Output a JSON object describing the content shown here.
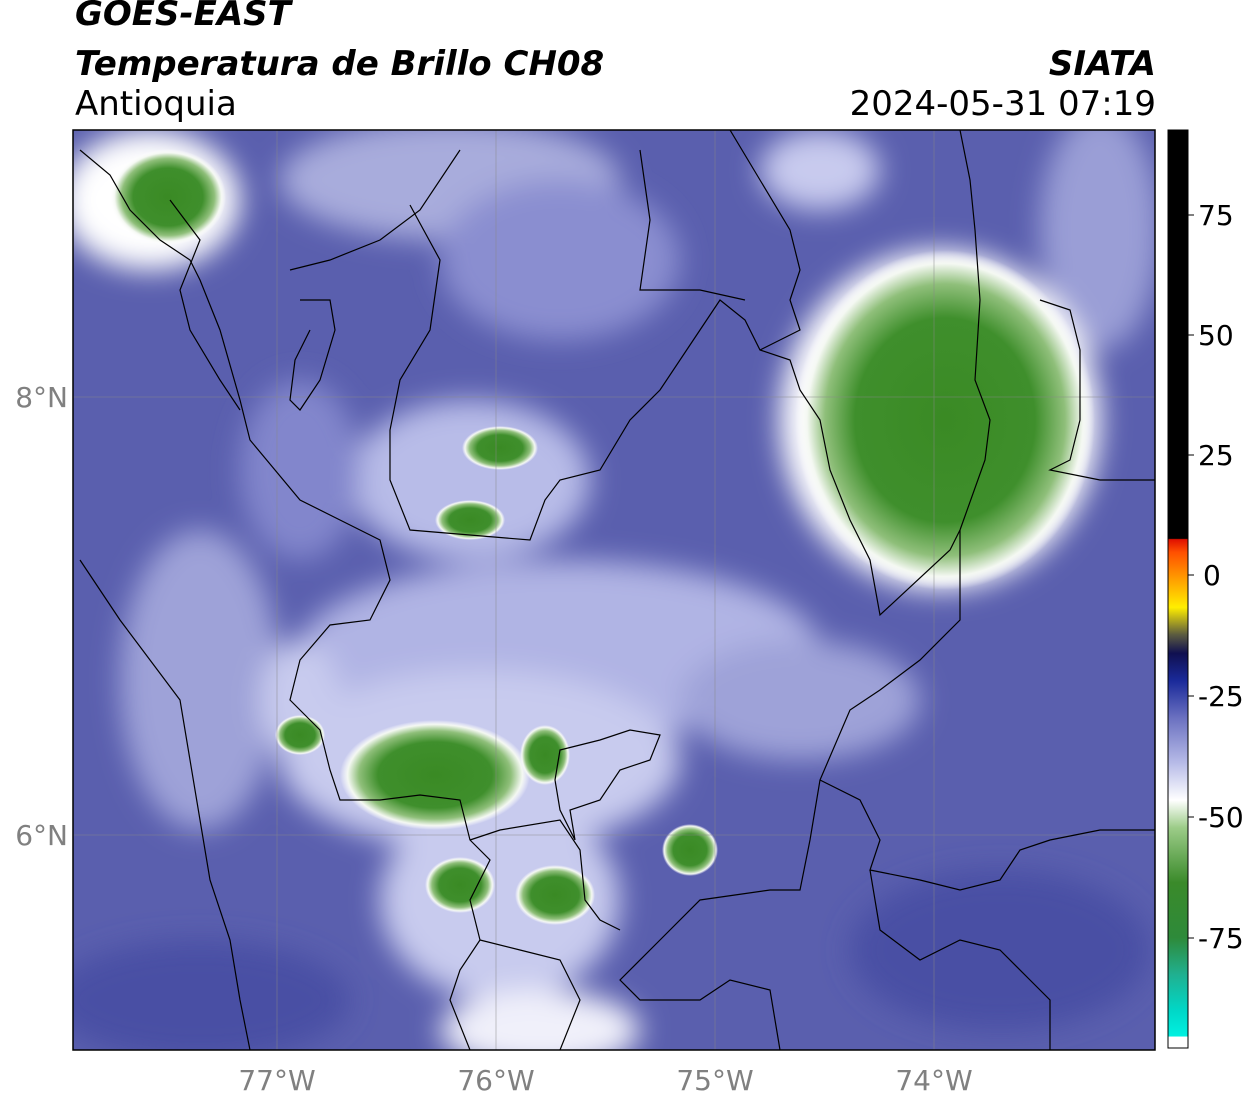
{
  "header": {
    "satellite": "GOES-EAST",
    "product": "Temperatura de Brillo CH08",
    "region": "Antioquia",
    "source": "SIATA",
    "timestamp": "2024-05-31 07:19"
  },
  "map": {
    "longitude_ticks": [
      "77°W",
      "76°W",
      "75°W",
      "74°W"
    ],
    "latitude_ticks": [
      "8°N",
      "6°N"
    ],
    "grid": true
  },
  "colorbar": {
    "ticks": [
      "75",
      "50",
      "25",
      "0",
      "-25",
      "-50",
      "-75"
    ],
    "range": [
      -85,
      90
    ],
    "colors": {
      "warm_black": "#000000",
      "red": "#e01000",
      "orange": "#ff8c00",
      "yellow": "#ffee00",
      "dark_navy": "#101050",
      "blue": "#1a2a9a",
      "lavender": "#8a8ed0",
      "white": "#ffffff",
      "green": "#3a8a2a",
      "cyan": "#00e8e0"
    }
  },
  "colors": {
    "background_cloud_free": "#5a5fae",
    "cold_cloud_top": "#3e8f2a",
    "cloud_edge": "#ffffff",
    "border_lines": "#000000"
  }
}
